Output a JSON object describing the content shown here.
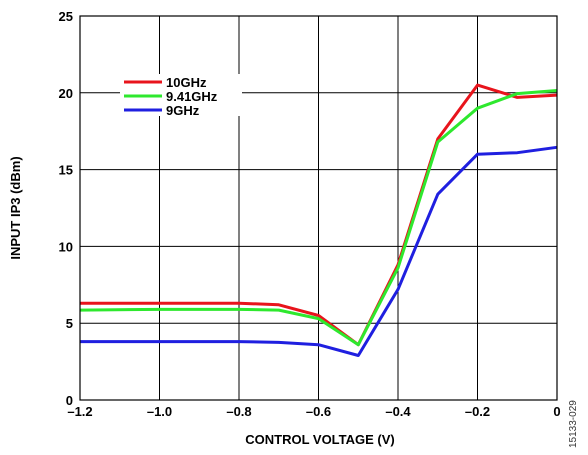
{
  "chart_data": {
    "type": "line",
    "xlabel": "CONTROL VOLTAGE (V)",
    "ylabel": "INPUT IP3 (dBm)",
    "xlim": [
      -1.2,
      0
    ],
    "ylim": [
      0,
      25
    ],
    "x_ticks": [
      -1.2,
      -1.0,
      -0.8,
      -0.6,
      -0.4,
      -0.2,
      0
    ],
    "x_tick_labels": [
      "–1.2",
      "–1.0",
      "–0.8",
      "–0.6",
      "–0.4",
      "–0.2",
      "0"
    ],
    "y_ticks": [
      0,
      5,
      10,
      15,
      20,
      25
    ],
    "y_tick_labels": [
      "0",
      "5",
      "10",
      "15",
      "20",
      "25"
    ],
    "grid": true,
    "legend_position": "top-left",
    "series": [
      {
        "name": "10GHz",
        "color": "#e8141c",
        "x": [
          -1.2,
          -1.0,
          -0.8,
          -0.7,
          -0.6,
          -0.5,
          -0.4,
          -0.3,
          -0.2,
          -0.1,
          0
        ],
        "y": [
          6.3,
          6.3,
          6.3,
          6.2,
          5.5,
          3.6,
          8.8,
          17.0,
          20.5,
          19.7,
          19.85
        ]
      },
      {
        "name": "9.41GHz",
        "color": "#2ee82e",
        "x": [
          -1.2,
          -1.0,
          -0.8,
          -0.7,
          -0.6,
          -0.5,
          -0.4,
          -0.3,
          -0.2,
          -0.1,
          0
        ],
        "y": [
          5.85,
          5.9,
          5.9,
          5.85,
          5.3,
          3.6,
          8.6,
          16.8,
          19.0,
          19.95,
          20.15
        ]
      },
      {
        "name": "9GHz",
        "color": "#1f1fe0",
        "x": [
          -1.2,
          -1.0,
          -0.8,
          -0.7,
          -0.6,
          -0.5,
          -0.4,
          -0.3,
          -0.2,
          -0.1,
          0
        ],
        "y": [
          3.8,
          3.8,
          3.8,
          3.75,
          3.6,
          2.9,
          7.2,
          13.4,
          16.0,
          16.1,
          16.45
        ]
      }
    ],
    "side_label": "15133-029"
  }
}
